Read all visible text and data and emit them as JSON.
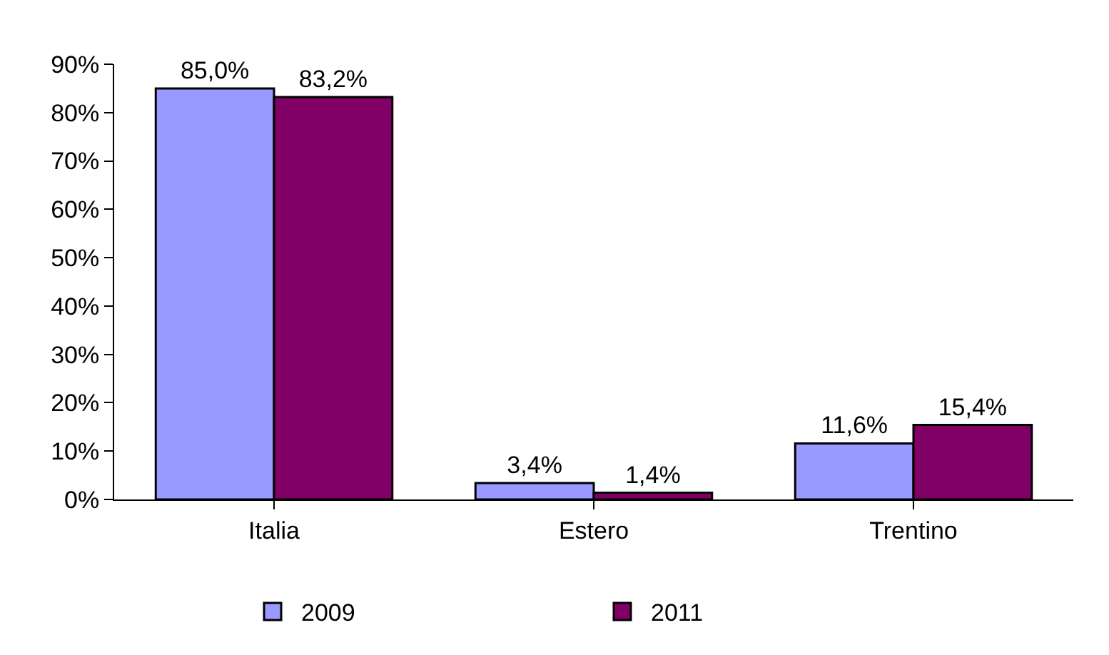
{
  "chart_data": {
    "type": "bar",
    "categories": [
      "Italia",
      "Estero",
      "Trentino"
    ],
    "series": [
      {
        "name": "2009",
        "color": "#9999ff",
        "values": [
          85.0,
          3.4,
          11.6
        ],
        "value_labels": [
          "85,0%",
          "3,4%",
          "11,6%"
        ]
      },
      {
        "name": "2011",
        "color": "#800066",
        "values": [
          83.2,
          1.4,
          15.4
        ],
        "value_labels": [
          "83,2%",
          "1,4%",
          "15,4%"
        ]
      }
    ],
    "ylim": [
      0,
      90
    ],
    "yticks": [
      {
        "value": 0,
        "label": "0%"
      },
      {
        "value": 10,
        "label": "10%"
      },
      {
        "value": 20,
        "label": "20%"
      },
      {
        "value": 30,
        "label": "30%"
      },
      {
        "value": 40,
        "label": "40%"
      },
      {
        "value": 50,
        "label": "50%"
      },
      {
        "value": 60,
        "label": "60%"
      },
      {
        "value": 70,
        "label": "70%"
      },
      {
        "value": 80,
        "label": "80%"
      },
      {
        "value": 90,
        "label": "90%"
      }
    ],
    "grid": false,
    "legend": "bottom"
  }
}
